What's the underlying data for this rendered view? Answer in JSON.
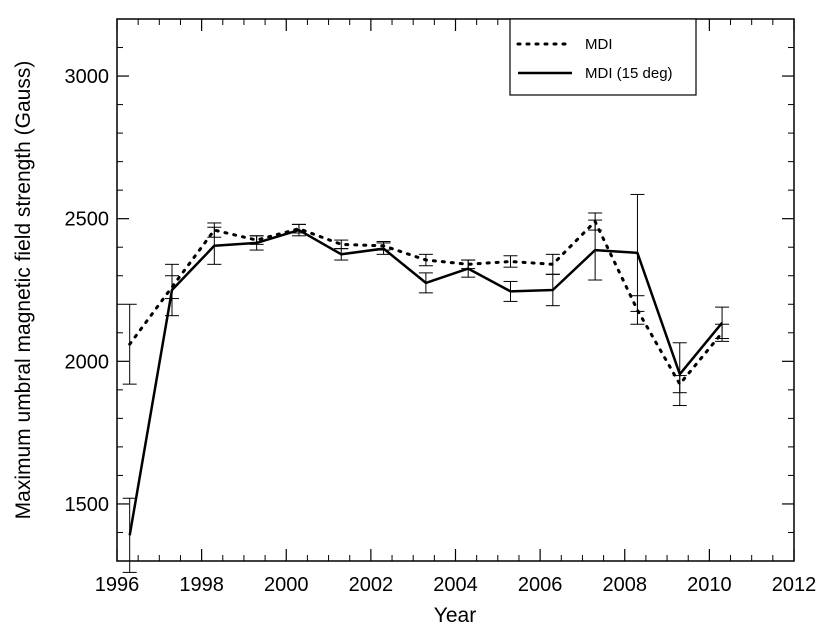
{
  "chart_data": {
    "type": "line",
    "xlabel": "Year",
    "ylabel": "Maximum umbral magnetic field strength (Gauss)",
    "xlim": [
      1996,
      2012
    ],
    "ylim": [
      1300,
      3200
    ],
    "x_ticks": [
      "1996",
      "1998",
      "2000",
      "2002",
      "2004",
      "2006",
      "2008",
      "2010",
      "2012"
    ],
    "y_ticks": [
      "1500",
      "2000",
      "2500",
      "3000"
    ],
    "legend_position": "top-right",
    "series": [
      {
        "name": "MDI",
        "style": "dotted",
        "color": "#000000",
        "x": [
          1996.3,
          1997.3,
          1998.3,
          1999.3,
          2000.3,
          2001.3,
          2002.3,
          2003.3,
          2004.3,
          2005.3,
          2006.3,
          2007.3,
          2008.3,
          2009.3,
          2010.3
        ],
        "y": [
          2060,
          2260,
          2460,
          2425,
          2465,
          2410,
          2405,
          2355,
          2340,
          2350,
          2340,
          2490,
          2180,
          1920,
          2100
        ],
        "err": [
          140,
          40,
          25,
          15,
          15,
          15,
          15,
          20,
          15,
          20,
          35,
          30,
          50,
          30,
          30
        ]
      },
      {
        "name": "MDI (15 deg)",
        "style": "solid",
        "color": "#000000",
        "x": [
          1996.3,
          1997.3,
          1998.3,
          1999.3,
          2000.3,
          2001.3,
          2002.3,
          2003.3,
          2004.3,
          2005.3,
          2006.3,
          2007.3,
          2008.3,
          2009.3,
          2010.3
        ],
        "y": [
          1390,
          2250,
          2405,
          2415,
          2460,
          2375,
          2395,
          2275,
          2325,
          2245,
          2250,
          2390,
          2380,
          1955,
          2135
        ],
        "err": [
          130,
          90,
          65,
          25,
          20,
          20,
          20,
          35,
          30,
          35,
          55,
          105,
          205,
          110,
          55
        ]
      }
    ]
  }
}
